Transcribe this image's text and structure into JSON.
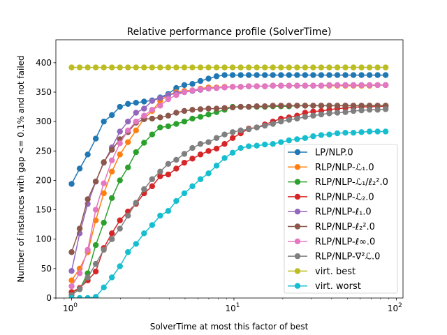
{
  "chart_data": {
    "type": "line",
    "title": "Relative performance profile (SolverTime)",
    "xlabel": "SolverTime at most this factor of best",
    "ylabel": "Number of instances with gap <= 0.1% and not failed",
    "xscale": "log",
    "xlim": [
      0.8,
      110
    ],
    "ylim": [
      0,
      439
    ],
    "x_range": [
      1,
      86
    ],
    "n_points": 40,
    "yticks": [
      0,
      50,
      100,
      150,
      200,
      250,
      300,
      350,
      400
    ],
    "xticks": [
      {
        "base": "10",
        "exp": "0",
        "value": 1
      },
      {
        "base": "10",
        "exp": "1",
        "value": 10
      },
      {
        "base": "10",
        "exp": "2",
        "value": 100
      }
    ],
    "grid": false,
    "legend_placement": "lower-right",
    "series": [
      {
        "name": "LP/NLP.0",
        "color": "#1f77b4",
        "values": [
          194,
          220,
          244,
          271,
          300,
          311,
          325,
          330,
          332,
          334,
          336,
          341,
          347,
          357,
          362,
          364,
          369,
          373,
          377,
          379,
          379,
          379,
          379,
          379,
          379,
          379,
          379,
          379,
          379,
          379,
          379,
          379,
          379,
          379,
          379,
          379,
          379,
          379,
          379,
          379
        ]
      },
      {
        "name": "RLP/NLP-ℒ₁.0",
        "color": "#ff7f0e",
        "values": [
          30,
          50,
          78,
          132,
          178,
          215,
          244,
          265,
          285,
          305,
          318,
          335,
          345,
          350,
          352,
          353,
          356,
          358,
          358,
          359,
          359,
          359,
          360,
          360,
          360,
          361,
          361,
          361,
          361,
          361,
          361,
          361,
          361,
          361,
          361,
          361,
          361,
          361,
          362,
          362
        ]
      },
      {
        "name": "RLP/NLP-ℒ₁/ℓ₂².0",
        "color": "#2ca02c",
        "values": [
          10,
          15,
          42,
          90,
          128,
          170,
          200,
          222,
          248,
          264,
          278,
          290,
          292,
          296,
          300,
          305,
          308,
          312,
          316,
          320,
          325,
          325,
          325,
          325,
          325,
          326,
          326,
          326,
          327,
          327,
          327,
          327,
          327,
          327,
          327,
          327,
          327,
          327,
          327,
          327
        ]
      },
      {
        "name": "RLP/NLP-ℒ₂.0",
        "color": "#d62728",
        "values": [
          10,
          17,
          30,
          45,
          85,
          110,
          132,
          147,
          160,
          178,
          190,
          207,
          210,
          220,
          230,
          237,
          244,
          250,
          254,
          262,
          272,
          280,
          288,
          290,
          295,
          300,
          305,
          307,
          310,
          315,
          317,
          318,
          320,
          322,
          323,
          324,
          325,
          325,
          326,
          326
        ]
      },
      {
        "name": "RLP/NLP-ℓ₁.0",
        "color": "#9467bd",
        "values": [
          46,
          110,
          160,
          198,
          230,
          256,
          283,
          300,
          315,
          322,
          335,
          340,
          345,
          348,
          350,
          352,
          354,
          356,
          357,
          358,
          359,
          359,
          360,
          360,
          360,
          361,
          361,
          361,
          361,
          361,
          361,
          361,
          362,
          362,
          362,
          362,
          362,
          362,
          362,
          362
        ]
      },
      {
        "name": "RLP/NLP-ℓ₂².0",
        "color": "#8c564b",
        "values": [
          78,
          118,
          168,
          198,
          231,
          252,
          270,
          282,
          298,
          304,
          305,
          307,
          310,
          315,
          318,
          320,
          321,
          322,
          322,
          323,
          324,
          325,
          325,
          326,
          326,
          327,
          327,
          327,
          327,
          327,
          327,
          327,
          327,
          327,
          327,
          327,
          327,
          327,
          327,
          327
        ]
      },
      {
        "name": "RLP/NLP-ℓ∞.0",
        "color": "#e377c2",
        "values": [
          20,
          42,
          82,
          150,
          195,
          234,
          263,
          285,
          300,
          310,
          320,
          327,
          338,
          345,
          350,
          353,
          355,
          356,
          357,
          358,
          359,
          359,
          360,
          360,
          360,
          361,
          361,
          361,
          361,
          361,
          361,
          361,
          362,
          362,
          362,
          362,
          362,
          362,
          362,
          362
        ]
      },
      {
        "name": "RLP/NLP-∇²ℒ.0",
        "color": "#7f7f7f",
        "values": [
          5,
          15,
          35,
          58,
          82,
          100,
          118,
          140,
          162,
          185,
          202,
          215,
          228,
          235,
          245,
          255,
          262,
          265,
          272,
          278,
          282,
          285,
          287,
          290,
          293,
          296,
          300,
          303,
          305,
          308,
          310,
          312,
          314,
          315,
          316,
          318,
          319,
          320,
          320,
          321
        ]
      },
      {
        "name": "virt. best",
        "color": "#bcbd22",
        "values": [
          392,
          392,
          392,
          392,
          392,
          392,
          392,
          392,
          392,
          392,
          392,
          392,
          392,
          392,
          392,
          392,
          392,
          392,
          392,
          392,
          392,
          392,
          392,
          392,
          392,
          392,
          392,
          392,
          392,
          392,
          392,
          392,
          392,
          392,
          392,
          392,
          392,
          392,
          392,
          392
        ]
      },
      {
        "name": "virt. worst",
        "color": "#17becf",
        "values": [
          0,
          0,
          0,
          2,
          18,
          35,
          54,
          78,
          92,
          110,
          124,
          140,
          148,
          165,
          178,
          190,
          202,
          212,
          225,
          238,
          247,
          255,
          258,
          259,
          261,
          262,
          265,
          268,
          270,
          272,
          275,
          277,
          278,
          280,
          281,
          281,
          282,
          283,
          283,
          283
        ]
      }
    ]
  }
}
